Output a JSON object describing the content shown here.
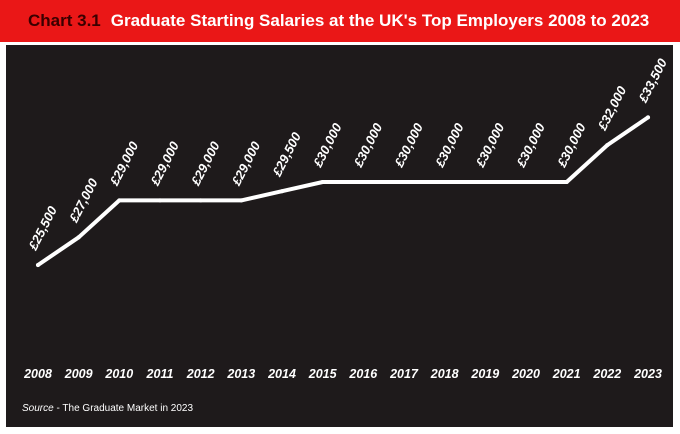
{
  "header": {
    "chart_number": "Chart 3.1",
    "title": "Graduate Starting Salaries at the UK's Top Employers 2008 to 2023"
  },
  "source": {
    "label": "Source",
    "separator": " - ",
    "text": "The Graduate Market in 2023"
  },
  "colors": {
    "header_background": "#ea1717",
    "chart_background": "#1e1a1b",
    "line": "#ffffff",
    "text": "#ffffff"
  },
  "chart_data": {
    "type": "line",
    "title": "Graduate Starting Salaries at the UK's Top Employers 2008 to 2023",
    "xlabel": "",
    "ylabel": "",
    "grid": false,
    "legend": "none",
    "ylim": [
      20000,
      36000
    ],
    "categories": [
      "2008",
      "2009",
      "2010",
      "2011",
      "2012",
      "2013",
      "2014",
      "2015",
      "2016",
      "2017",
      "2018",
      "2019",
      "2020",
      "2021",
      "2022",
      "2023"
    ],
    "series": [
      {
        "values": [
          25500,
          27000,
          29000,
          29000,
          29000,
          29000,
          29500,
          30000,
          30000,
          30000,
          30000,
          30000,
          30000,
          30000,
          32000,
          33500
        ],
        "data_labels": [
          "£25,500",
          "£27,000",
          "£29,000",
          "£29,000",
          "£29,000",
          "£29,000",
          "£29,500",
          "£30,000",
          "£30,000",
          "£30,000",
          "£30,000",
          "£30,000",
          "£30,000",
          "£30,000",
          "£32,000",
          "£33,500"
        ]
      }
    ]
  }
}
